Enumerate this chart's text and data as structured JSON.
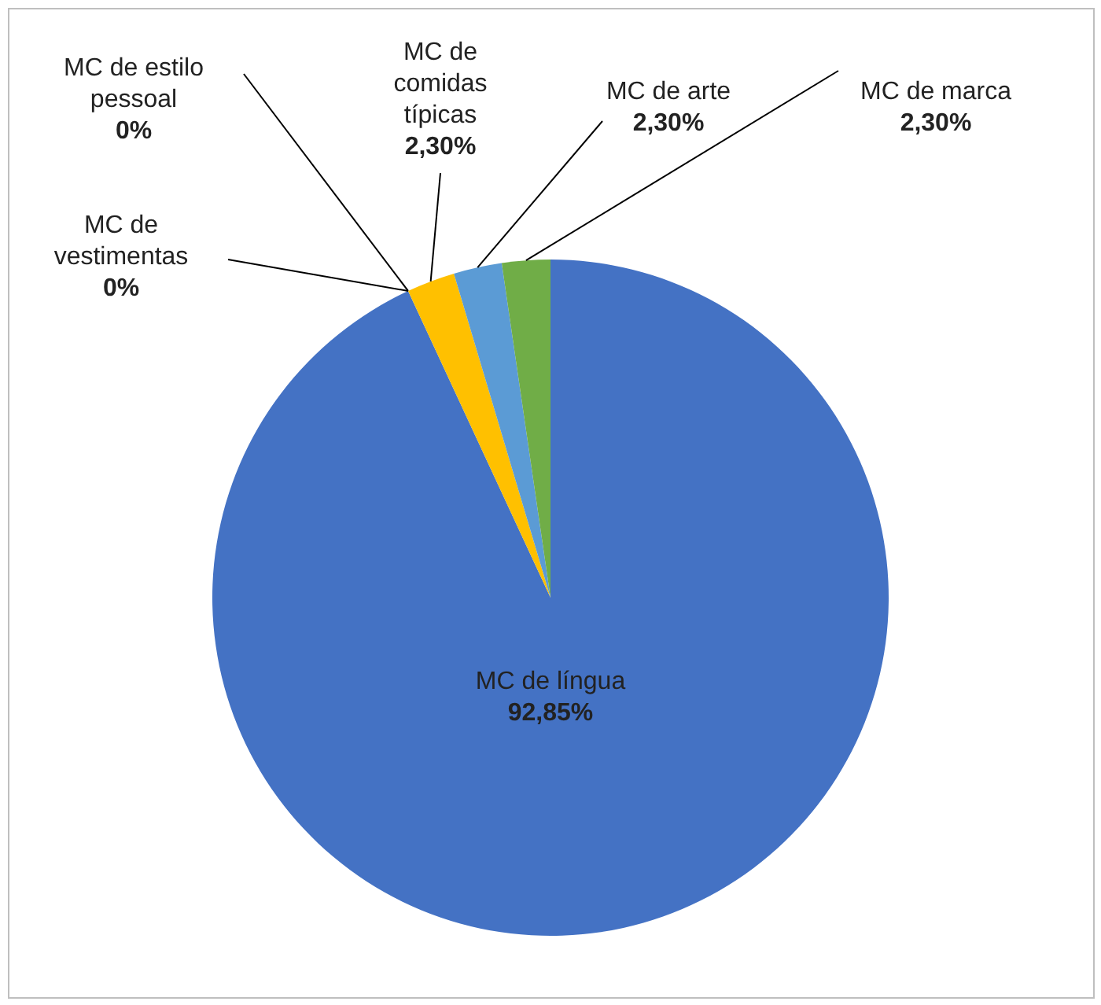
{
  "chart_data": {
    "type": "pie",
    "categories": [
      "MC de língua",
      "MC de estilo pessoal",
      "MC de vestimentas",
      "MC de comidas típicas",
      "MC de arte",
      "MC de marca"
    ],
    "values": [
      92.85,
      0,
      0,
      2.3,
      2.3,
      2.3
    ],
    "colors": [
      "#4472c4",
      "#a5a5a5",
      "#ed7d31",
      "#ffc000",
      "#5b9bd5",
      "#70ad47"
    ],
    "value_labels": [
      "92,85%",
      "0%",
      "0%",
      "2,30%",
      "2,30%",
      "2,30%"
    ]
  }
}
